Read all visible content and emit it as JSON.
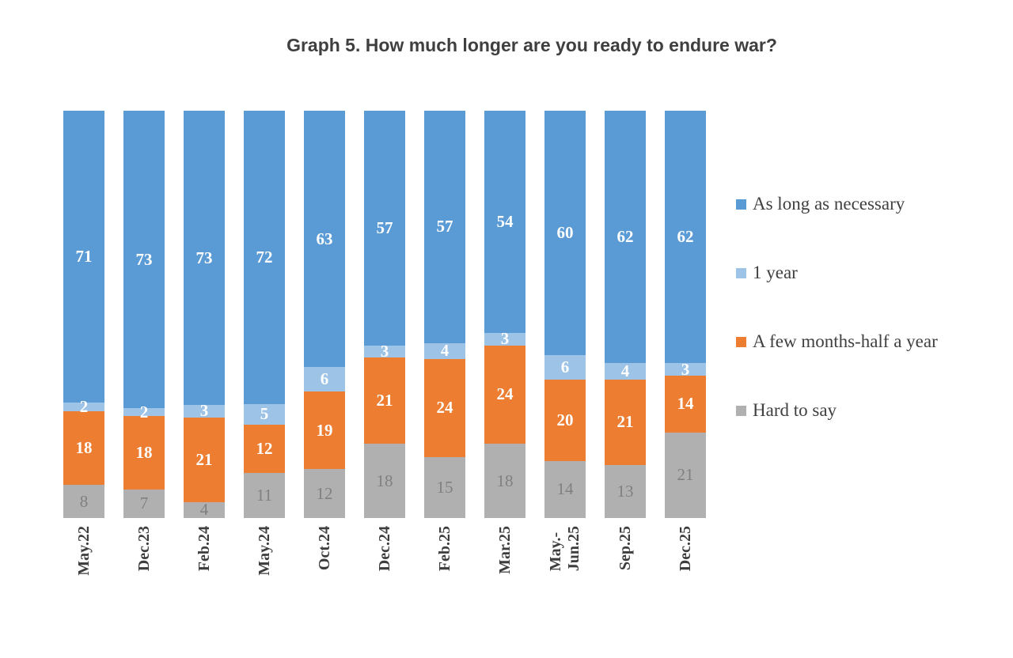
{
  "title": "Graph 5. How much longer are you ready to endure war?",
  "chart_data": {
    "type": "bar",
    "stacked": true,
    "normalized_height": true,
    "title": "Graph 5. How much longer are you ready to endure war?",
    "xlabel": "",
    "ylabel": "",
    "grid": false,
    "legend_position": "right",
    "categories": [
      "May.22",
      "Dec.23",
      "Feb.24",
      "May.24",
      "Oct.24",
      "Dec.24",
      "Feb.25",
      "Mar.25",
      "May.-\nJun.25",
      "Sep.25",
      "Dec.25"
    ],
    "series": [
      {
        "name": "Hard to say",
        "color": "#b0b0b0",
        "label_color": "#808080",
        "label_bold": false,
        "values": [
          8,
          7,
          4,
          11,
          12,
          18,
          15,
          18,
          14,
          13,
          21
        ]
      },
      {
        "name": "A few months-half a year",
        "color": "#ed7d31",
        "label_color": "#ffffff",
        "label_bold": true,
        "values": [
          18,
          18,
          21,
          12,
          19,
          21,
          24,
          24,
          20,
          21,
          14
        ]
      },
      {
        "name": "1 year",
        "color": "#9dc3e6",
        "label_color": "#ffffff",
        "label_bold": true,
        "values": [
          2,
          2,
          3,
          5,
          6,
          3,
          4,
          3,
          6,
          4,
          3
        ]
      },
      {
        "name": "As long as necessary",
        "color": "#5b9bd5",
        "label_color": "#ffffff",
        "label_bold": true,
        "values": [
          71,
          73,
          73,
          72,
          63,
          57,
          57,
          54,
          60,
          62,
          62
        ]
      }
    ],
    "legend": [
      {
        "label": "As long as necessary",
        "color": "#5b9bd5"
      },
      {
        "label": "1 year",
        "color": "#9dc3e6"
      },
      {
        "label": "A few months-half a year",
        "color": "#ed7d31"
      },
      {
        "label": "Hard to say",
        "color": "#b0b0b0"
      }
    ]
  }
}
